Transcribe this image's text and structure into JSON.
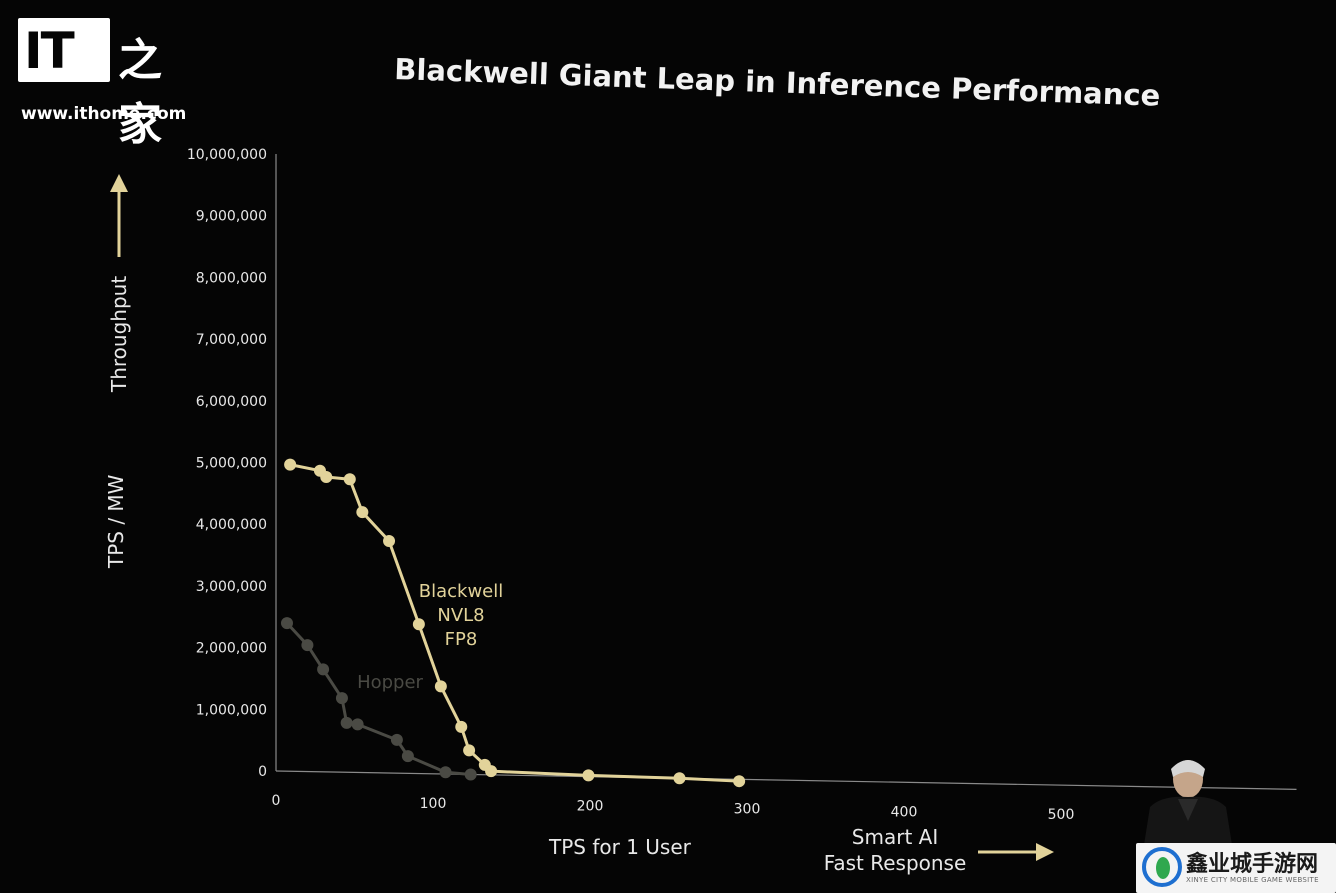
{
  "watermark": {
    "logo_letters": "IT",
    "logo_cn": "之家",
    "url": "www.ithome.com"
  },
  "corner_watermark": {
    "text": "鑫业城手游网",
    "subtext": "XINYE CITY MOBILE GAME WEBSITE"
  },
  "colors": {
    "background": "#050505",
    "blackwell": "#e2d39a",
    "hopper": "#4a4a44",
    "axis": "#8a8a8a",
    "text": "#e8e8e8"
  },
  "chart_data": {
    "type": "line",
    "title": "Blackwell Giant Leap in Inference Performance",
    "ylabel": "TPS / MW",
    "ylabel_top": "Throughput",
    "xlabel": "TPS for 1 User",
    "xlabel_right": [
      "Smart AI",
      "Fast Response"
    ],
    "xlim": [
      0,
      650
    ],
    "ylim": [
      0,
      10000000
    ],
    "xticks": [
      0,
      100,
      200,
      300,
      400,
      500
    ],
    "yticks": [
      0,
      1000000,
      2000000,
      3000000,
      4000000,
      5000000,
      6000000,
      7000000,
      8000000,
      9000000,
      10000000
    ],
    "ytick_labels": [
      "0",
      "1,000,000",
      "2,000,000",
      "3,000,000",
      "4,000,000",
      "5,000,000",
      "6,000,000",
      "7,000,000",
      "8,000,000",
      "9,000,000",
      "10,000,000"
    ],
    "grid": false,
    "series": [
      {
        "name": "Blackwell NVL8 FP8",
        "label_lines": [
          "Blackwell",
          "NVL8",
          "FP8"
        ],
        "color": "#e2d39a",
        "x": [
          9,
          28,
          32,
          47,
          55,
          72,
          91,
          105,
          118,
          123,
          133,
          137,
          199,
          257,
          295
        ],
        "y": [
          4970000,
          4880000,
          4780000,
          4750000,
          4220000,
          3760000,
          2420000,
          1420000,
          770000,
          390000,
          160000,
          60000,
          20000,
          0,
          -30000
        ]
      },
      {
        "name": "Hopper",
        "label_lines": [
          "Hopper"
        ],
        "color": "#4a4a44",
        "x": [
          7,
          20,
          30,
          42,
          45,
          52,
          77,
          84,
          108,
          124
        ],
        "y": [
          2400000,
          2050000,
          1660000,
          1200000,
          800000,
          780000,
          540000,
          280000,
          30000,
          0
        ]
      }
    ]
  }
}
